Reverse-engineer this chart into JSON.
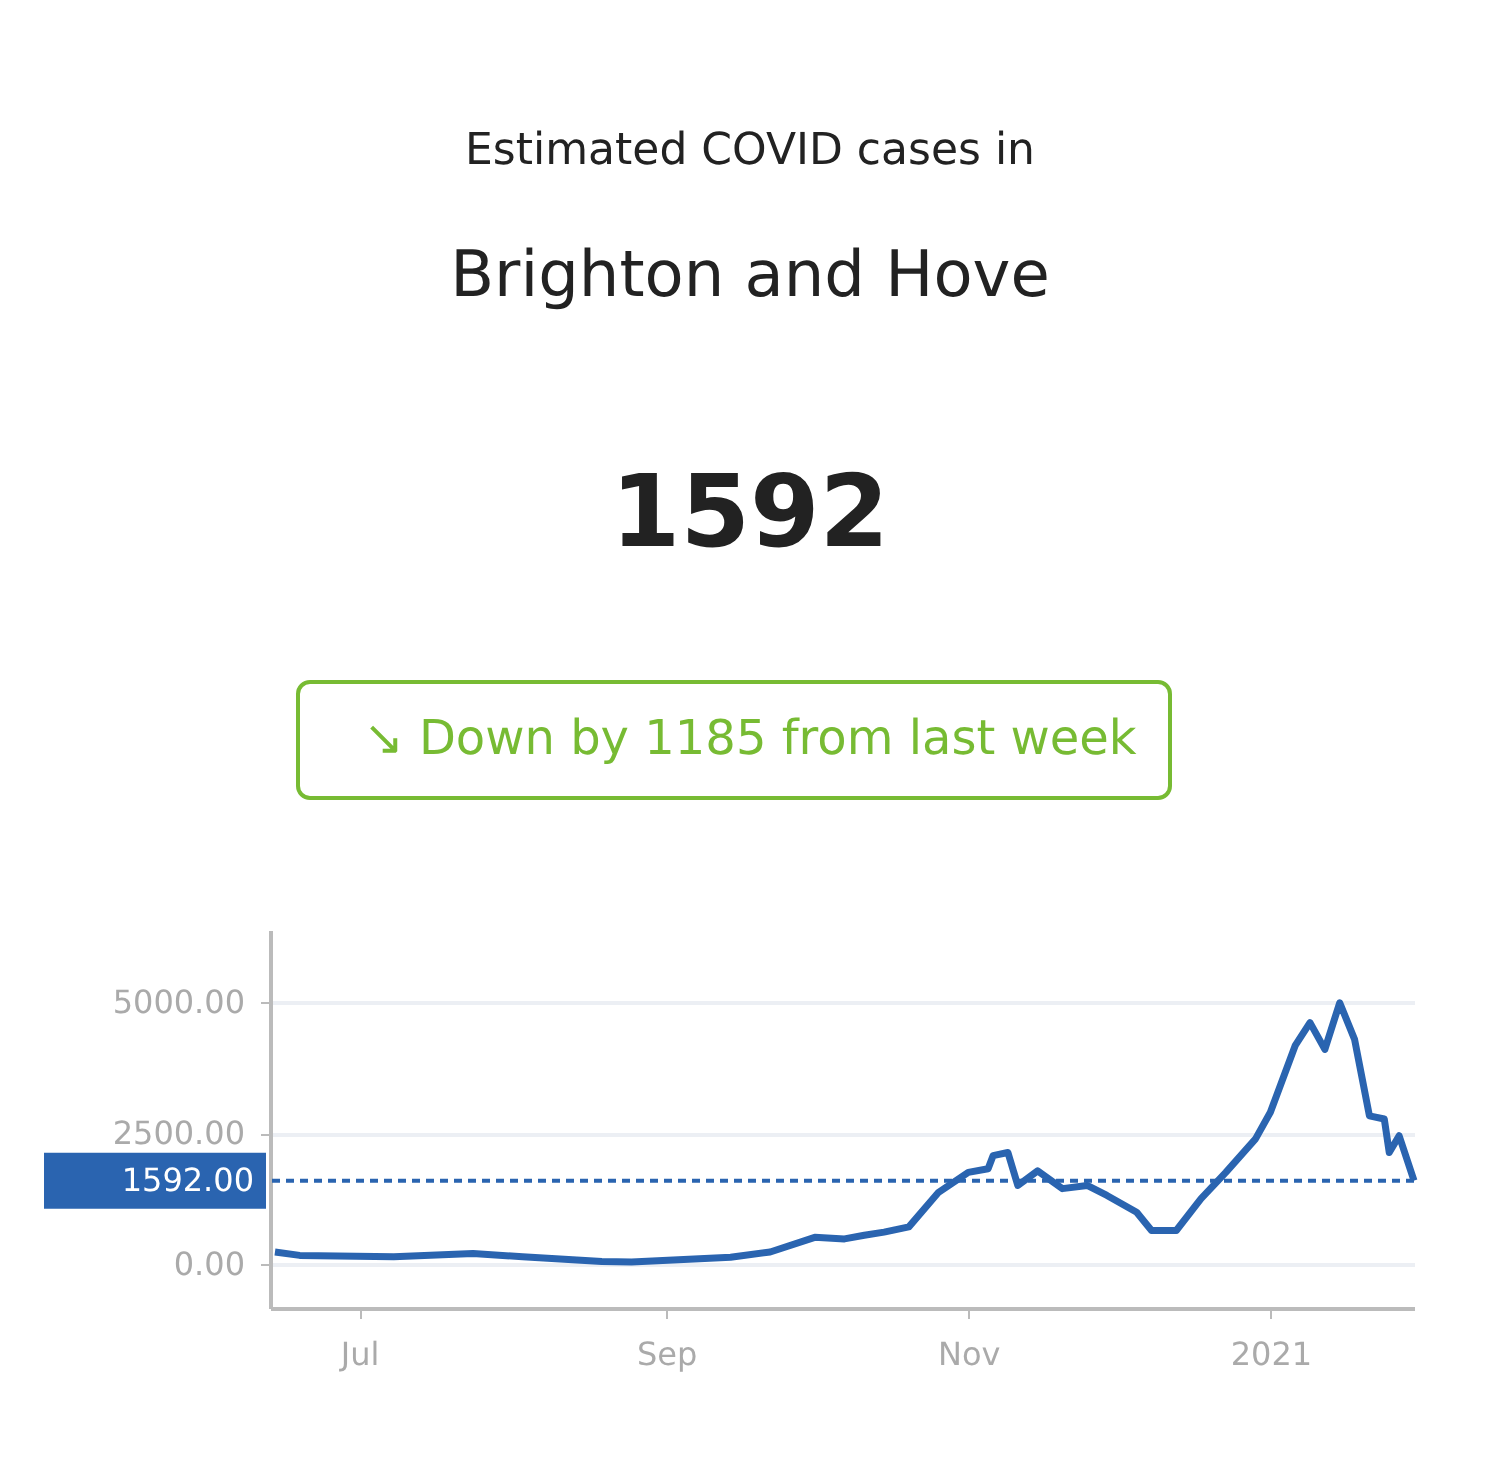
{
  "chart_data": {
    "type": "line",
    "title": "Estimated COVID cases in",
    "subtitle": "Brighton and Hove",
    "annotations": [
      "1592",
      "↘ Down by 1185 from last week"
    ],
    "x": [
      "2020-06-14",
      "2020-06-19",
      "2020-07-08",
      "2020-07-24",
      "2020-08-03",
      "2020-08-19",
      "2020-08-25",
      "2020-09-14",
      "2020-09-22",
      "2020-10-01",
      "2020-10-07",
      "2020-10-11",
      "2020-10-15",
      "2020-10-20",
      "2020-10-26",
      "2020-11-01",
      "2020-11-05",
      "2020-11-06",
      "2020-11-09",
      "2020-11-11",
      "2020-11-15",
      "2020-11-20",
      "2020-11-25",
      "2020-11-29",
      "2020-12-05",
      "2020-12-08",
      "2020-12-13",
      "2020-12-18",
      "2020-12-23",
      "2020-12-29",
      "2021-01-01",
      "2021-01-06",
      "2021-01-09",
      "2021-01-12",
      "2021-01-15",
      "2021-01-18",
      "2021-01-21",
      "2021-01-24",
      "2021-01-25",
      "2021-01-27",
      "2021-01-30"
    ],
    "series": [
      {
        "color": "#2a64b0",
        "values": [
          230,
          165,
          140,
          200,
          140,
          50,
          40,
          130,
          230,
          510,
          480,
          550,
          610,
          710,
          1370,
          1750,
          1820,
          2070,
          2130,
          1500,
          1780,
          1440,
          1500,
          1310,
          990,
          640,
          640,
          1250,
          1750,
          2390,
          2900,
          4170,
          4610,
          4100,
          4990,
          4290,
          2830,
          2770,
          2130,
          2450,
          1592
        ]
      }
    ],
    "xlim": [
      "2020-06-13",
      "2021-01-30"
    ],
    "xticks": [
      {
        "value": "2020-07-01",
        "label": "Jul"
      },
      {
        "value": "2020-09-01",
        "label": "Sep"
      },
      {
        "value": "2020-11-01",
        "label": "Nov"
      },
      {
        "value": "2021-01-01",
        "label": "2021"
      }
    ],
    "ylim": [
      -840,
      6380
    ],
    "yticks": [
      {
        "value": 0,
        "label": "0.00"
      },
      {
        "value": 2500,
        "label": "2500.00"
      },
      {
        "value": 5000,
        "label": "5000.00"
      }
    ],
    "ref_lines": [
      {
        "axis": "y",
        "value": 1592,
        "label": "1592.00",
        "color": "#2a64b0",
        "line_style": "dashed"
      }
    ],
    "grid": "y",
    "marker": "none",
    "line_style": "solid"
  }
}
